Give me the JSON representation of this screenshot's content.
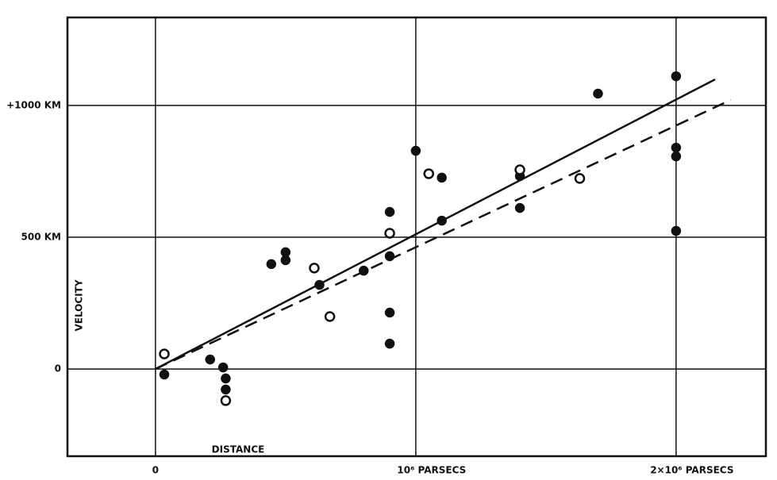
{
  "chart_data": {
    "type": "scatter",
    "x_label": "DISTANCE",
    "y_label": "VELOCITY",
    "xlim": [
      -338000,
      2345000
    ],
    "ylim": [
      -331,
      1334
    ],
    "xticks": [
      0,
      {
        "value": 1000000,
        "label": "10⁶ PARSECS"
      },
      {
        "value": 2000000,
        "label": "2×10⁶ PARSECS"
      }
    ],
    "yticks": [
      0,
      {
        "value": 500,
        "label": "500 KM"
      },
      {
        "value": 1000,
        "label": "+1000 KM"
      }
    ],
    "grid": true,
    "series": [
      {
        "mode": "markers",
        "marker": "filled",
        "color": "#111111",
        "x": [
          34000,
          210000,
          260000,
          270000,
          270000,
          445000,
          500000,
          500000,
          630000,
          800000,
          900000,
          900000,
          900000,
          900000,
          1000000,
          1100000,
          1100000,
          1400000,
          1400000,
          1700000,
          2000000,
          2000000,
          2000000,
          2000000
        ],
        "values": [
          -21,
          36,
          6,
          -36,
          -78,
          398,
          443,
          413,
          319,
          373,
          596,
          428,
          214,
          96,
          828,
          726,
          563,
          611,
          732,
          1045,
          1111,
          840,
          807,
          524
        ]
      },
      {
        "mode": "markers",
        "marker": "open",
        "color": "#111111",
        "x": [
          34000,
          270000,
          610000,
          670000,
          900000,
          1050000,
          1400000,
          1630000
        ],
        "values": [
          57,
          -120,
          383,
          199,
          515,
          741,
          756,
          723
        ]
      },
      {
        "mode": "line",
        "dash": "solid",
        "color": "#111111",
        "x": [
          0,
          2150000
        ],
        "values": [
          0,
          1099
        ]
      },
      {
        "mode": "line",
        "dash": "dashed",
        "color": "#111111",
        "x": [
          0,
          2210000
        ],
        "values": [
          0,
          1021
        ]
      }
    ]
  }
}
